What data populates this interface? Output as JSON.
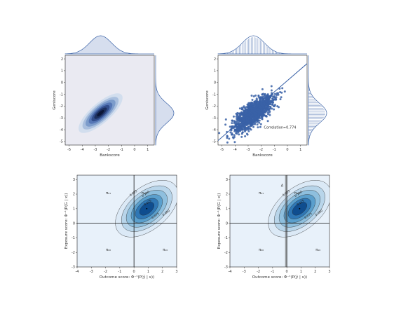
{
  "colors": {
    "accent": "#3a62a7",
    "panel_bg": "#eaeaf2",
    "kde_bg": "#e8f1fa",
    "fills": [
      "#dbe9f6",
      "#b8d5ea",
      "#8ebfde",
      "#5a9fcd",
      "#2f77b5",
      "#0f4d8f",
      "#08306b"
    ],
    "dark_fills": [
      "#d2deee",
      "#a9bfde",
      "#7c9ccb",
      "#5576b5",
      "#324e8c",
      "#1c2f5e",
      "#0b1636"
    ]
  },
  "chart_data": [
    {
      "type": "heatmap",
      "subtype": "jointplot-kde",
      "title": "",
      "xlabel": "Bankscore",
      "ylabel": "Geniscore",
      "xlim": [
        -5.3,
        1.5
      ],
      "ylim": [
        -5.3,
        2.3
      ],
      "xticks": [
        "-5",
        "-4",
        "-3",
        "-2",
        "-1",
        "0",
        "1"
      ],
      "yticks": [
        "2",
        "1",
        "0",
        "-1",
        "-2",
        "-3",
        "-4",
        "-5"
      ],
      "distribution": {
        "mean_x": -2.6,
        "mean_y": -2.6,
        "sd_x": 0.6,
        "sd_y": 0.6,
        "rho": 0.774
      },
      "marginals": [
        "top-kde",
        "right-kde"
      ]
    },
    {
      "type": "scatter",
      "subtype": "jointplot-reg",
      "title": "",
      "xlabel": "Bankscore",
      "ylabel": "Geniscore",
      "xlim": [
        -5.3,
        1.5
      ],
      "ylim": [
        -5.3,
        2.3
      ],
      "xticks": [
        "-5",
        "-4",
        "-3",
        "-2",
        "-1",
        "0",
        "1"
      ],
      "yticks": [
        "2",
        "1",
        "0",
        "-1",
        "-2",
        "-3",
        "-4",
        "-5"
      ],
      "annotation": "Correlation=0.774",
      "regression": {
        "x": [
          -5.3,
          1.5
        ],
        "y": [
          -4.92,
          1.6
        ]
      },
      "distribution": {
        "mean_x": -2.6,
        "mean_y": -2.6,
        "sd_x": 0.6,
        "sd_y": 0.6,
        "rho": 0.774
      },
      "marginals": [
        "top-hist",
        "right-hist"
      ]
    },
    {
      "type": "heatmap",
      "subtype": "contour",
      "title": "",
      "xlabel": "Outcome score: Φ⁻¹(P(ŷ | x))",
      "ylabel": "Exposure score: Φ⁻¹(P(G | x))",
      "xlim": [
        -4,
        3
      ],
      "ylim": [
        -3,
        3.3
      ],
      "xticks": [
        "-4",
        "-3",
        "-2",
        "-1",
        "0",
        "1",
        "2",
        "3"
      ],
      "yticks": [
        "3",
        "2",
        "1",
        "0",
        "-1",
        "-2",
        "-3"
      ],
      "quadrants": [
        {
          "label": "π₀₁",
          "x": -1.8,
          "y": 2.0
        },
        {
          "label": "π₁₁",
          "x": 0.7,
          "y": 2.0
        },
        {
          "label": "π₀₀",
          "x": -1.8,
          "y": -1.9
        },
        {
          "label": "π₁₀",
          "x": 2.2,
          "y": -1.9
        }
      ],
      "distribution": {
        "mean_x": 0.9,
        "mean_y": 1.0,
        "sd_x": 0.85,
        "sd_y": 0.75,
        "rho": 0.5
      },
      "contour_levels": [
        {
          "label": "0.025",
          "x": -0.25,
          "y": 1.85
        },
        {
          "label": "0.100",
          "x": 0.6,
          "y": 1.8
        },
        {
          "label": "0.125",
          "x": 0.75,
          "y": 1.2
        },
        {
          "label": "0.075",
          "x": 1.3,
          "y": 0.3
        },
        {
          "label": "0.050",
          "x": 2.05,
          "y": 0.5
        }
      ]
    },
    {
      "type": "heatmap",
      "subtype": "contour",
      "title": "",
      "xlabel": "Outcome score: Φ⁻¹(P(ŷ | x))",
      "ylabel": "Exposure score: Φ⁻¹(P(G | x))",
      "xlim": [
        -4,
        3
      ],
      "ylim": [
        -3,
        3.3
      ],
      "xticks": [
        "-4",
        "-3",
        "-2",
        "-1",
        "0",
        "1",
        "2",
        "3"
      ],
      "yticks": [
        "3",
        "2",
        "1",
        "0",
        "-1",
        "-2",
        "-3"
      ],
      "band_label": "A",
      "band": {
        "x0": -0.12,
        "x1": 0.0
      },
      "quadrants": [
        {
          "label": "π₀₁",
          "x": -1.8,
          "y": 2.0
        },
        {
          "label": "π₁₁",
          "x": 0.7,
          "y": 2.0
        },
        {
          "label": "π₀₀",
          "x": -1.8,
          "y": -1.9
        },
        {
          "label": "π₁₀",
          "x": 2.2,
          "y": -1.9
        }
      ],
      "distribution": {
        "mean_x": 0.9,
        "mean_y": 1.0,
        "sd_x": 0.85,
        "sd_y": 0.75,
        "rho": 0.5
      },
      "contour_levels": [
        {
          "label": "0.025",
          "x": -0.25,
          "y": 1.85
        },
        {
          "label": "0.100",
          "x": 0.6,
          "y": 1.8
        },
        {
          "label": "0.125",
          "x": 0.75,
          "y": 1.2
        },
        {
          "label": "0.075",
          "x": 1.3,
          "y": 0.3
        },
        {
          "label": "0.050",
          "x": 2.05,
          "y": 0.5
        }
      ]
    }
  ]
}
